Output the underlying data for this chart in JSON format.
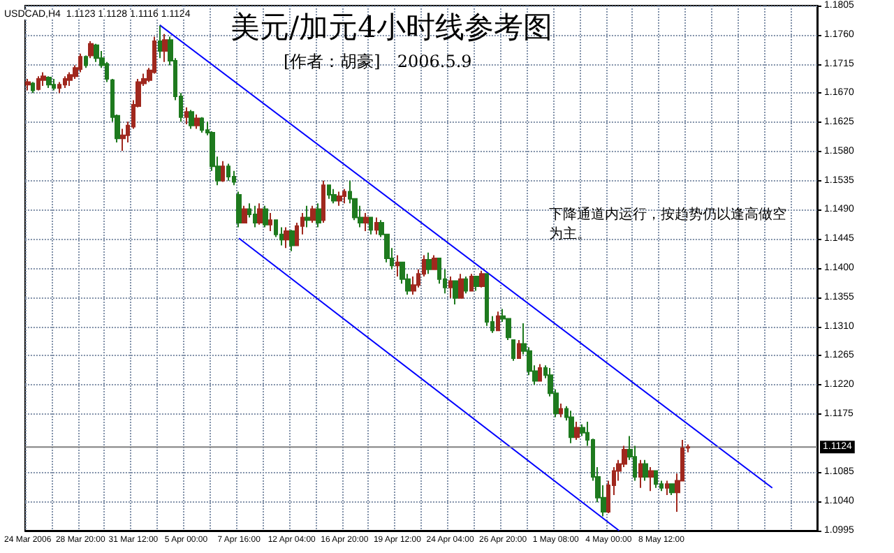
{
  "chart_data": {
    "type": "candlestick",
    "title": "美元/加元4小时线参考图",
    "subtitle": "[作者：胡豪]　2006.5.9",
    "annotations": [
      "USDCAD,H4  1.1123 1.1128 1.1116 1.1124",
      "下降通道内运行，按趋势仍以逢高做空为主。"
    ],
    "categories": [
      "24 Mar 2006",
      null,
      null,
      null,
      null,
      null,
      null,
      null,
      null,
      null,
      "28 Mar 20:00",
      null,
      null,
      null,
      null,
      null,
      null,
      null,
      null,
      null,
      "31 Mar 12:00",
      null,
      null,
      null,
      null,
      null,
      null,
      null,
      null,
      null,
      "5 Apr 00:00",
      null,
      null,
      null,
      null,
      null,
      null,
      null,
      null,
      null,
      "7 Apr 16:00",
      null,
      null,
      null,
      null,
      null,
      null,
      null,
      null,
      null,
      "12 Apr 04:00",
      null,
      null,
      null,
      null,
      null,
      null,
      null,
      null,
      null,
      "16 Apr 20:00",
      null,
      null,
      null,
      null,
      null,
      null,
      null,
      null,
      null,
      "19 Apr 12:00",
      null,
      null,
      null,
      null,
      null,
      null,
      null,
      null,
      null,
      "24 Apr 04:00",
      null,
      null,
      null,
      null,
      null,
      null,
      null,
      null,
      null,
      "26 Apr 20:00",
      null,
      null,
      null,
      null,
      null,
      null,
      null,
      null,
      null,
      "1 May 08:00",
      null,
      null,
      null,
      null,
      null,
      null,
      null,
      null,
      null,
      "4 May 00:00",
      null,
      null,
      null,
      null,
      null,
      null,
      null,
      null,
      null,
      "8 May 12:00",
      null,
      null,
      null,
      null,
      null,
      null,
      null,
      null,
      null,
      null,
      null,
      null,
      null,
      null,
      null,
      null,
      null,
      null,
      null,
      null,
      null,
      null,
      null,
      null,
      null,
      null,
      null,
      null,
      null
    ],
    "ohlc": [
      [
        1.1683,
        1.1692,
        1.1674,
        1.1687
      ],
      [
        1.1685,
        1.1687,
        1.167,
        1.1674
      ],
      [
        1.1676,
        1.1696,
        1.1674,
        1.1692
      ],
      [
        1.169,
        1.1702,
        1.1681,
        1.1696
      ],
      [
        1.1694,
        1.1696,
        1.1678,
        1.1683
      ],
      [
        1.1683,
        1.1692,
        1.1674,
        1.1678
      ],
      [
        1.1678,
        1.1687,
        1.167,
        1.1683
      ],
      [
        1.1683,
        1.1696,
        1.1678,
        1.1692
      ],
      [
        1.169,
        1.1702,
        1.1681,
        1.1698
      ],
      [
        1.1696,
        1.1713,
        1.1692,
        1.1709
      ],
      [
        1.1707,
        1.1731,
        1.1702,
        1.1726
      ],
      [
        1.1726,
        1.1728,
        1.1709,
        1.1713
      ],
      [
        1.1728,
        1.175,
        1.1724,
        1.1746
      ],
      [
        1.1744,
        1.1746,
        1.1718,
        1.1724
      ],
      [
        1.1724,
        1.1735,
        1.1709,
        1.1713
      ],
      [
        1.1715,
        1.1718,
        1.1687,
        1.1692
      ],
      [
        1.169,
        1.1692,
        1.1626,
        1.1633
      ],
      [
        1.1635,
        1.1637,
        1.1594,
        1.16
      ],
      [
        1.16,
        1.1615,
        1.1581,
        1.1605
      ],
      [
        1.1605,
        1.1626,
        1.1594,
        1.162
      ],
      [
        1.1618,
        1.1659,
        1.1615,
        1.1652
      ],
      [
        1.165,
        1.1692,
        1.1648,
        1.1687
      ],
      [
        1.1685,
        1.17,
        1.1681,
        1.1692
      ],
      [
        1.169,
        1.1709,
        1.1687,
        1.1705
      ],
      [
        1.1702,
        1.1757,
        1.17,
        1.175
      ],
      [
        1.175,
        1.1774,
        1.1724,
        1.1735
      ],
      [
        1.1735,
        1.1761,
        1.1718,
        1.1752
      ],
      [
        1.1752,
        1.1757,
        1.1713,
        1.172
      ],
      [
        1.172,
        1.1724,
        1.1659,
        1.1665
      ],
      [
        1.1665,
        1.167,
        1.1626,
        1.1633
      ],
      [
        1.1633,
        1.1648,
        1.1622,
        1.1641
      ],
      [
        1.1641,
        1.1644,
        1.1615,
        1.162
      ],
      [
        1.162,
        1.1637,
        1.1615,
        1.1631
      ],
      [
        1.1631,
        1.1633,
        1.1609,
        1.1613
      ],
      [
        1.1613,
        1.1626,
        1.1605,
        1.1609
      ],
      [
        1.1609,
        1.1611,
        1.155,
        1.1557
      ],
      [
        1.1557,
        1.1572,
        1.1528,
        1.1535
      ],
      [
        1.1535,
        1.1565,
        1.1533,
        1.1557
      ],
      [
        1.1557,
        1.1561,
        1.1535,
        1.1541
      ],
      [
        1.1541,
        1.155,
        1.1528,
        1.1533
      ],
      [
        1.1513,
        1.1518,
        1.1463,
        1.147
      ],
      [
        1.147,
        1.1496,
        1.147,
        1.1491
      ],
      [
        1.1491,
        1.15,
        1.1478,
        1.1483
      ],
      [
        1.1483,
        1.1496,
        1.1463,
        1.147
      ],
      [
        1.147,
        1.15,
        1.1467,
        1.1491
      ],
      [
        1.1491,
        1.1496,
        1.1463,
        1.1467
      ],
      [
        1.1467,
        1.1485,
        1.1457,
        1.1474
      ],
      [
        1.1474,
        1.1474,
        1.1448,
        1.1452
      ],
      [
        1.1452,
        1.1463,
        1.1435,
        1.1444
      ],
      [
        1.1444,
        1.1463,
        1.1431,
        1.1457
      ],
      [
        1.1457,
        1.1459,
        1.1426,
        1.1435
      ],
      [
        1.1435,
        1.147,
        1.1435,
        1.1465
      ],
      [
        1.1465,
        1.1485,
        1.1452,
        1.1478
      ],
      [
        1.1478,
        1.1496,
        1.1463,
        1.1474
      ],
      [
        1.1474,
        1.1496,
        1.147,
        1.1491
      ],
      [
        1.1491,
        1.15,
        1.1463,
        1.147
      ],
      [
        1.1474,
        1.1535,
        1.147,
        1.1528
      ],
      [
        1.1528,
        1.1528,
        1.1507,
        1.1513
      ],
      [
        1.1513,
        1.1522,
        1.15,
        1.1504
      ],
      [
        1.1504,
        1.1518,
        1.1496,
        1.1511
      ],
      [
        1.1511,
        1.1522,
        1.15,
        1.1518
      ],
      [
        1.1518,
        1.1535,
        1.15,
        1.1507
      ],
      [
        1.1507,
        1.1507,
        1.1474,
        1.1478
      ],
      [
        1.1478,
        1.1496,
        1.1463,
        1.147
      ],
      [
        1.147,
        1.1485,
        1.1457,
        1.1478
      ],
      [
        1.1478,
        1.1478,
        1.1452,
        1.1459
      ],
      [
        1.1459,
        1.1478,
        1.1452,
        1.147
      ],
      [
        1.147,
        1.1474,
        1.1448,
        1.1452
      ],
      [
        1.1452,
        1.1452,
        1.1409,
        1.1415
      ],
      [
        1.1415,
        1.1431,
        1.1398,
        1.1404
      ],
      [
        1.1404,
        1.142,
        1.1387,
        1.1409
      ],
      [
        1.1409,
        1.1409,
        1.1376,
        1.1383
      ],
      [
        1.1383,
        1.1391,
        1.1359,
        1.1365
      ],
      [
        1.1365,
        1.1387,
        1.1359,
        1.1374
      ],
      [
        1.1374,
        1.1398,
        1.137,
        1.1391
      ],
      [
        1.1391,
        1.142,
        1.1387,
        1.1413
      ],
      [
        1.1413,
        1.1424,
        1.1391,
        1.1398
      ],
      [
        1.1398,
        1.142,
        1.1398,
        1.1415
      ],
      [
        1.1415,
        1.1415,
        1.1376,
        1.1383
      ],
      [
        1.1383,
        1.1398,
        1.1361,
        1.137
      ],
      [
        1.137,
        1.1387,
        1.1354,
        1.138
      ],
      [
        1.138,
        1.138,
        1.1344,
        1.1354
      ],
      [
        1.1354,
        1.1391,
        1.1354,
        1.1383
      ],
      [
        1.1383,
        1.1387,
        1.1361,
        1.1365
      ],
      [
        1.1365,
        1.1391,
        1.1365,
        1.1387
      ],
      [
        1.1387,
        1.1387,
        1.1365,
        1.1372
      ],
      [
        1.1372,
        1.1396,
        1.137,
        1.1391
      ],
      [
        1.1391,
        1.1391,
        1.1311,
        1.1317
      ],
      [
        1.1317,
        1.1326,
        1.13,
        1.1304
      ],
      [
        1.1304,
        1.1333,
        1.1304,
        1.1326
      ],
      [
        1.1326,
        1.1337,
        1.1317,
        1.1322
      ],
      [
        1.1322,
        1.1322,
        1.1289,
        1.1293
      ],
      [
        1.1289,
        1.1289,
        1.1257,
        1.1261
      ],
      [
        1.1261,
        1.1289,
        1.1261,
        1.1283
      ],
      [
        1.1283,
        1.1315,
        1.1267,
        1.1272
      ],
      [
        1.1272,
        1.1278,
        1.1235,
        1.1241
      ],
      [
        1.1241,
        1.125,
        1.122,
        1.1226
      ],
      [
        1.1226,
        1.1252,
        1.1226,
        1.1246
      ],
      [
        1.1246,
        1.125,
        1.123,
        1.1235
      ],
      [
        1.1235,
        1.1246,
        1.1202,
        1.1207
      ],
      [
        1.1207,
        1.1213,
        1.117,
        1.1176
      ],
      [
        1.1176,
        1.1191,
        1.117,
        1.1183
      ],
      [
        1.1183,
        1.1187,
        1.1165,
        1.117
      ],
      [
        1.117,
        1.118,
        1.113,
        1.1139
      ],
      [
        1.1139,
        1.1163,
        1.1135,
        1.1154
      ],
      [
        1.1154,
        1.1159,
        1.1141,
        1.1146
      ],
      [
        1.1146,
        1.1163,
        1.1126,
        1.1135
      ],
      [
        1.1135,
        1.1137,
        1.1072,
        1.1078
      ],
      [
        1.1078,
        1.1093,
        1.1039,
        1.1046
      ],
      [
        1.1046,
        1.1065,
        1.1017,
        1.1024
      ],
      [
        1.1024,
        1.1072,
        1.1022,
        1.1065
      ],
      [
        1.1065,
        1.1093,
        1.105,
        1.1087
      ],
      [
        1.1087,
        1.1104,
        1.1072,
        1.1098
      ],
      [
        1.1098,
        1.1126,
        1.1093,
        1.112
      ],
      [
        1.112,
        1.1141,
        1.1104,
        1.1109
      ],
      [
        1.1109,
        1.1126,
        1.1072,
        1.1078
      ],
      [
        1.1078,
        1.1104,
        1.1061,
        1.1098
      ],
      [
        1.1098,
        1.1104,
        1.1072,
        1.1078
      ],
      [
        1.1078,
        1.1093,
        1.1056,
        1.1087
      ],
      [
        1.1087,
        1.1087,
        1.1061,
        1.1067
      ],
      [
        1.1067,
        1.1072,
        1.1056,
        1.1061
      ],
      [
        1.1061,
        1.1072,
        1.105,
        1.1067
      ],
      [
        1.1067,
        1.1067,
        1.105,
        1.1054
      ],
      [
        1.1054,
        1.1083,
        1.1024,
        1.1072
      ],
      [
        1.1072,
        1.1135,
        1.1072,
        1.1122
      ],
      [
        1.1123,
        1.1128,
        1.1116,
        1.1124
      ],
      null,
      null,
      null,
      null,
      null,
      null,
      null,
      null,
      null,
      null,
      null,
      null,
      null,
      null,
      null,
      null,
      null,
      null,
      null,
      null,
      null,
      null,
      null,
      null
    ],
    "series": [
      {
        "type": "line",
        "color": "#0000ff",
        "values": [
          null,
          null,
          null,
          null,
          null,
          null,
          null,
          null,
          null,
          null,
          null,
          null,
          null,
          null,
          null,
          null,
          null,
          null,
          null,
          null,
          null,
          null,
          null,
          null,
          null,
          1.1775,
          null,
          null,
          null,
          null,
          null,
          null,
          null,
          null,
          null,
          null,
          null,
          null,
          null,
          null,
          null,
          null,
          null,
          null,
          null,
          null,
          null,
          null,
          null,
          null,
          null,
          null,
          null,
          null,
          null,
          null,
          null,
          null,
          null,
          null,
          null,
          null,
          null,
          null,
          null,
          null,
          null,
          null,
          null,
          null,
          null,
          null,
          null,
          null,
          null,
          null,
          null,
          null,
          null,
          null,
          null,
          null,
          null,
          null,
          null,
          null,
          null,
          null,
          null,
          null,
          null,
          null,
          null,
          null,
          null,
          null,
          null,
          null,
          null,
          null,
          null,
          null,
          null,
          null,
          null,
          null,
          null,
          null,
          null,
          null,
          null,
          null,
          null,
          null,
          null,
          null,
          null,
          null,
          null,
          null,
          null,
          null,
          null,
          null,
          null,
          null,
          null,
          null,
          null,
          null,
          null,
          null,
          null,
          null,
          null,
          null,
          null,
          null,
          null,
          null,
          null,
          1.1061,
          null,
          null,
          null,
          null,
          null,
          null,
          null,
          null
        ]
      },
      {
        "type": "line",
        "color": "#0000ff",
        "values": [
          null,
          null,
          null,
          null,
          null,
          null,
          null,
          null,
          null,
          null,
          null,
          null,
          null,
          null,
          null,
          null,
          null,
          null,
          null,
          null,
          null,
          null,
          null,
          null,
          null,
          null,
          null,
          null,
          null,
          null,
          null,
          null,
          null,
          null,
          null,
          null,
          null,
          null,
          null,
          null,
          1.1446,
          null,
          null,
          null,
          null,
          null,
          null,
          null,
          null,
          null,
          null,
          null,
          null,
          null,
          null,
          null,
          null,
          null,
          null,
          null,
          null,
          null,
          null,
          null,
          null,
          null,
          null,
          null,
          null,
          null,
          null,
          null,
          null,
          null,
          null,
          null,
          null,
          null,
          null,
          null,
          null,
          null,
          null,
          null,
          null,
          null,
          null,
          null,
          null,
          null,
          null,
          null,
          null,
          null,
          null,
          null,
          null,
          null,
          null,
          null,
          null,
          null,
          null,
          null,
          null,
          null,
          null,
          null,
          null,
          null,
          null,
          null,
          1.0995,
          null,
          null,
          null,
          null,
          null,
          null,
          null,
          null,
          null,
          null,
          null,
          null,
          null,
          null,
          null,
          null,
          null,
          null,
          null,
          null,
          null,
          null,
          null,
          null,
          null,
          null,
          null,
          null,
          null,
          null,
          null,
          null,
          null,
          null,
          null,
          null,
          null
        ]
      }
    ],
    "ylim": [
      1.0995,
      1.1805
    ],
    "yticks": [
      1.0995,
      {
        "value": 1.104,
        "label": "1.1040"
      },
      1.1085,
      1.1175,
      {
        "value": 1.122,
        "label": "1.1220"
      },
      1.1265,
      {
        "value": 1.131,
        "label": "1.1310"
      },
      1.1355,
      {
        "value": 1.14,
        "label": "1.1400"
      },
      1.1445,
      {
        "value": 1.149,
        "label": "1.1490"
      },
      1.1535,
      {
        "value": 1.158,
        "label": "1.1580"
      },
      1.1625,
      {
        "value": 1.167,
        "label": "1.1670"
      },
      1.1715,
      {
        "value": 1.176,
        "label": "1.1760"
      },
      1.1805
    ],
    "ref_lines": [
      {
        "axis": "y",
        "value": 1.1124,
        "label": "1.1124",
        "color": "#808080"
      }
    ],
    "grid": true,
    "marker": "none",
    "line_style": "solid"
  }
}
